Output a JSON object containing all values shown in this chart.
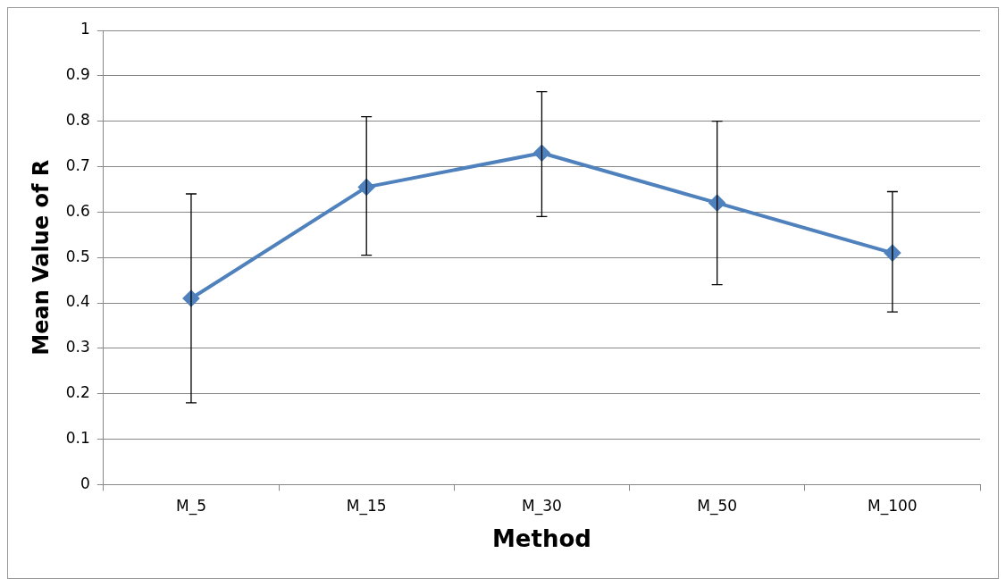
{
  "chart_data": {
    "type": "line",
    "xlabel": "Method",
    "ylabel": "Mean Value of R",
    "categories": [
      "M_5",
      "M_15",
      "M_30",
      "M_50",
      "M_100"
    ],
    "series": [
      {
        "color": "#4f81bd",
        "values": [
          0.41,
          0.655,
          0.73,
          0.62,
          0.51
        ],
        "errors": [
          [
            0.18,
            0.64
          ],
          [
            0.505,
            0.81
          ],
          [
            0.59,
            0.865
          ],
          [
            0.44,
            0.8
          ],
          [
            0.38,
            0.645
          ]
        ]
      }
    ],
    "ylim": [
      0,
      1
    ],
    "yticks": [
      0,
      0.1,
      0.2,
      0.3,
      0.4,
      0.5,
      0.6,
      0.7,
      0.8,
      0.9,
      1
    ],
    "grid": "y",
    "legend": false,
    "marker": "diamond",
    "line_style": "solid"
  }
}
